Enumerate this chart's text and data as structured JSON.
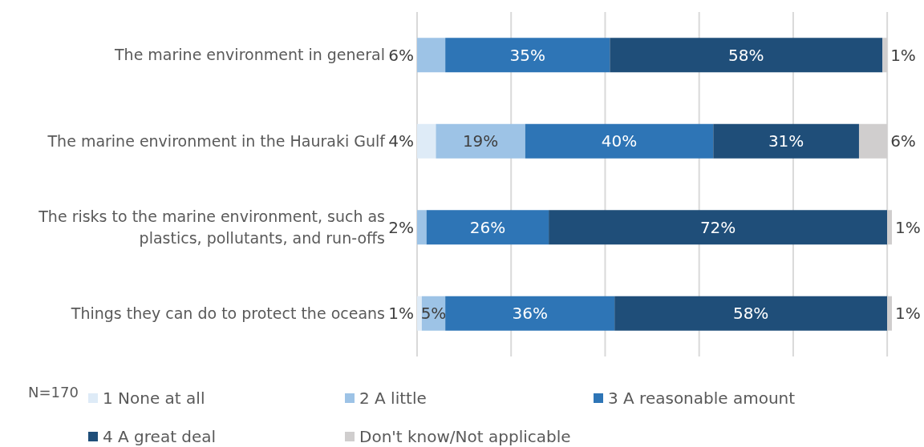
{
  "chart_data": {
    "type": "bar",
    "orientation": "horizontal",
    "stacked": true,
    "categories": [
      "The marine environment in general",
      "The marine environment in the Hauraki Gulf",
      "The risks to the marine environment, such as plastics, pollutants, and run-offs",
      "Things they can do to protect the oceans"
    ],
    "series": [
      {
        "name": "1 None at all",
        "color": "#deebf7",
        "values": [
          null,
          4,
          null,
          1
        ],
        "value_labels": [
          null,
          "4%",
          null,
          "1%"
        ]
      },
      {
        "name": "2 A little",
        "color": "#9dc3e6",
        "values": [
          6,
          19,
          2,
          5
        ],
        "value_labels": [
          "6%",
          "19%",
          "2%",
          "5%"
        ]
      },
      {
        "name": "3 A reasonable amount",
        "color": "#2e75b6",
        "values": [
          35,
          40,
          26,
          36
        ],
        "value_labels": [
          "35%",
          "40%",
          "26%",
          "36%"
        ]
      },
      {
        "name": "4 A great deal",
        "color": "#1f4e79",
        "values": [
          58,
          31,
          72,
          58
        ],
        "value_labels": [
          "58%",
          "31%",
          "72%",
          "58%"
        ]
      },
      {
        "name": "Don't know/Not applicable",
        "color": "#d0cece",
        "values": [
          1,
          6,
          1,
          1
        ],
        "value_labels": [
          "1%",
          "6%",
          "1%",
          "1%"
        ]
      }
    ],
    "grid": "x",
    "legend": "bottom",
    "annotations": [
      "N=170"
    ]
  }
}
